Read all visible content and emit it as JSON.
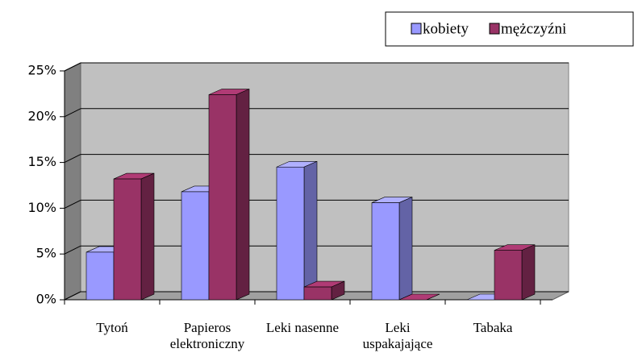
{
  "chart_data": {
    "type": "bar3d",
    "categories": [
      "Tytoń",
      "Papieros elektroniczny",
      "Leki nasenne",
      "Leki uspakajające",
      "Tabaka"
    ],
    "series": [
      {
        "name": "kobiety",
        "color": "#9999ff",
        "values": [
          5.2,
          11.8,
          14.5,
          10.6,
          0
        ]
      },
      {
        "name": "mężczyźni",
        "color": "#993366",
        "values": [
          13.2,
          22.4,
          1.4,
          0,
          5.4
        ]
      }
    ],
    "ylim": [
      0,
      25
    ],
    "yticks": [
      {
        "value": 0,
        "label": "0%"
      },
      {
        "value": 5,
        "label": "5%"
      },
      {
        "value": 10,
        "label": "10%"
      },
      {
        "value": 15,
        "label": "15%"
      },
      {
        "value": 20,
        "label": "20%"
      },
      {
        "value": 25,
        "label": "25%"
      }
    ],
    "grid": true,
    "legend": "top-right"
  }
}
